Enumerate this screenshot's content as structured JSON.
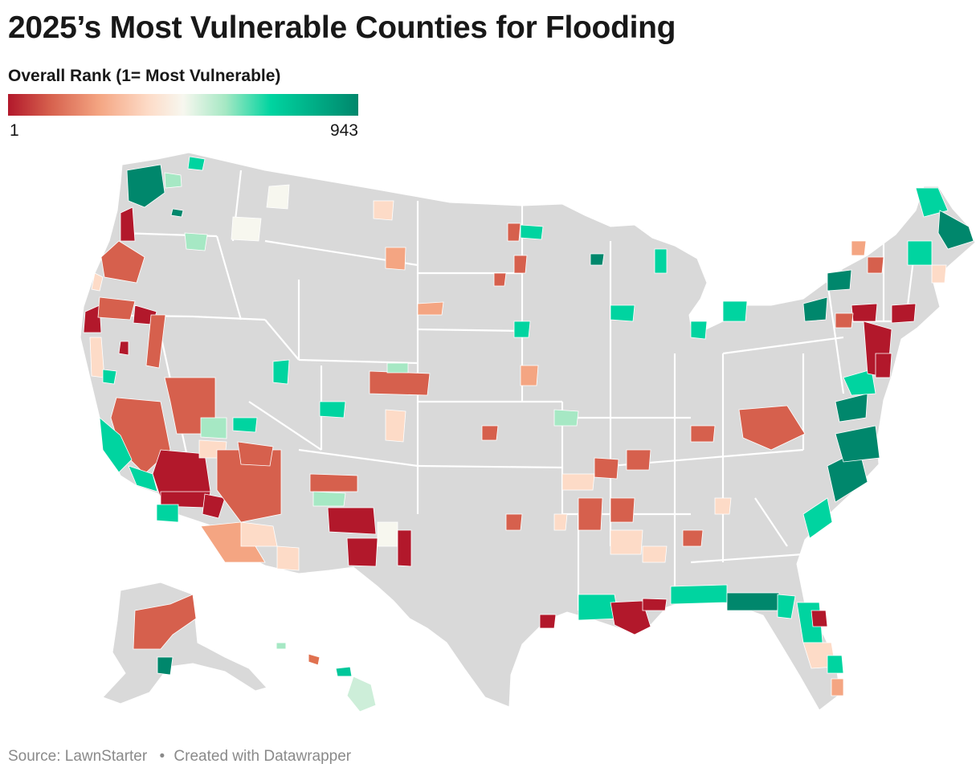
{
  "title": "2025’s Most Vulnerable Counties for Flooding",
  "legend": {
    "title": "Overall Rank (1= Most Vulnerable)",
    "min_label": "1",
    "max_label": "943",
    "scale": [
      {
        "stop": 0.0,
        "color": "#b2182b"
      },
      {
        "stop": 0.12,
        "color": "#d6604d"
      },
      {
        "stop": 0.26,
        "color": "#f4a582"
      },
      {
        "stop": 0.4,
        "color": "#fddbc7"
      },
      {
        "stop": 0.5,
        "color": "#f7f7ef"
      },
      {
        "stop": 0.62,
        "color": "#a6e8c4"
      },
      {
        "stop": 0.75,
        "color": "#00d4a0"
      },
      {
        "stop": 1.0,
        "color": "#00876c"
      }
    ]
  },
  "colors": {
    "no_data": "#d9d9d9",
    "county_border": "#ffffff",
    "state_border": "#ffffff"
  },
  "footer": {
    "source": "Source: LawnStarter",
    "credit": "Created with Datawrapper"
  }
}
